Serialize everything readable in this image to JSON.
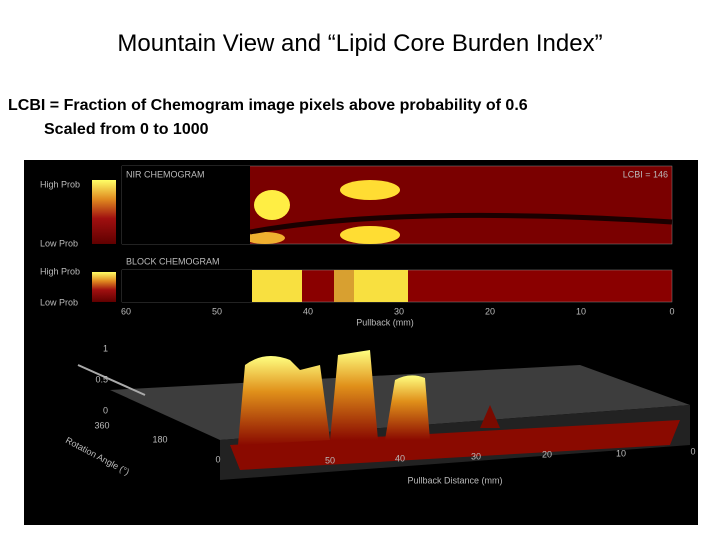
{
  "title": "Mountain View and “Lipid Core Burden Index”",
  "subtitle_lines": [
    "LCBI = Fraction of Chemogram image pixels above probability of 0.6",
    "Scaled from 0 to 1000"
  ],
  "figure": {
    "nir_label": "NIR CHEMOGRAM",
    "lcbi_label": "LCBI = 146",
    "nir_scale": [
      "High Prob",
      "Low Prob"
    ],
    "block_label": "BLOCK CHEMOGRAM",
    "block_scale": [
      "High Prob",
      "Low Prob"
    ],
    "pullback_ticks": [
      "60",
      "50",
      "40",
      "30",
      "20",
      "10",
      "0"
    ],
    "pullback_label": "Pullback (mm)",
    "prob_ticks": [
      "1",
      "0.5",
      "0"
    ],
    "angle_ticks": [
      "360",
      "180",
      "0"
    ],
    "angle_label": "Rotation Angle (°)",
    "distance_ticks": [
      "50",
      "40",
      "30",
      "20",
      "10",
      "0"
    ],
    "distance_label": "Pullback Distance (mm)"
  }
}
